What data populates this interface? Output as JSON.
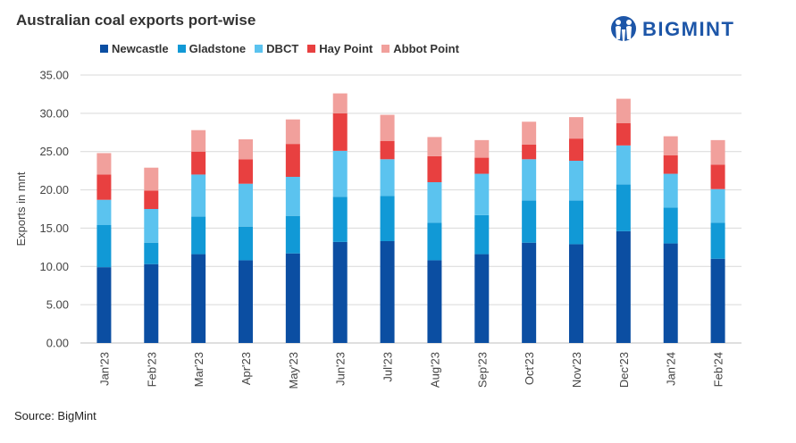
{
  "brand": {
    "name": "BIGMINT",
    "color": "#1d56a8"
  },
  "source": "Source: BigMint",
  "chart_data": {
    "type": "bar",
    "stacked": true,
    "title": "Australian coal exports port-wise",
    "xlabel": "",
    "ylabel": "Exports in mnt",
    "ylim": [
      0,
      35
    ],
    "yticks": [
      "0.00",
      "5.00",
      "10.00",
      "15.00",
      "20.00",
      "25.00",
      "30.00",
      "35.00"
    ],
    "ytick_values": [
      0,
      5,
      10,
      15,
      20,
      25,
      30,
      35
    ],
    "grid": true,
    "legend_position": "top-left",
    "categories": [
      "Jan'23",
      "Feb'23",
      "Mar'23",
      "Apr'23",
      "May'23",
      "Jun'23",
      "Jul'23",
      "Aug'23",
      "Sep'23",
      "Oct'23",
      "Nov'23",
      "Dec'23",
      "Jan'24",
      "Feb'24"
    ],
    "series": [
      {
        "name": "Newcastle",
        "color": "#0b4ea2",
        "values": [
          9.9,
          10.3,
          11.6,
          10.8,
          11.7,
          13.2,
          13.3,
          10.8,
          11.6,
          13.1,
          12.9,
          14.6,
          13.0,
          11.0
        ]
      },
      {
        "name": "Gladstone",
        "color": "#1199d6",
        "values": [
          5.5,
          2.8,
          4.9,
          4.4,
          4.9,
          5.9,
          5.9,
          4.9,
          5.1,
          5.5,
          5.7,
          6.1,
          4.7,
          4.7
        ]
      },
      {
        "name": "DBCT",
        "color": "#5bc3ef",
        "values": [
          3.3,
          4.4,
          5.5,
          5.6,
          5.1,
          6.0,
          4.8,
          5.3,
          5.4,
          5.4,
          5.2,
          5.1,
          4.4,
          4.4
        ]
      },
      {
        "name": "Hay Point",
        "color": "#e84040",
        "values": [
          3.3,
          2.4,
          3.0,
          3.2,
          4.3,
          4.9,
          2.4,
          3.4,
          2.1,
          1.9,
          2.9,
          2.9,
          2.4,
          3.2
        ]
      },
      {
        "name": "Abbot Point",
        "color": "#f1a09c",
        "values": [
          2.8,
          3.0,
          2.8,
          2.6,
          3.2,
          2.6,
          3.4,
          2.5,
          2.3,
          3.0,
          2.8,
          3.2,
          2.5,
          3.2
        ]
      }
    ]
  }
}
